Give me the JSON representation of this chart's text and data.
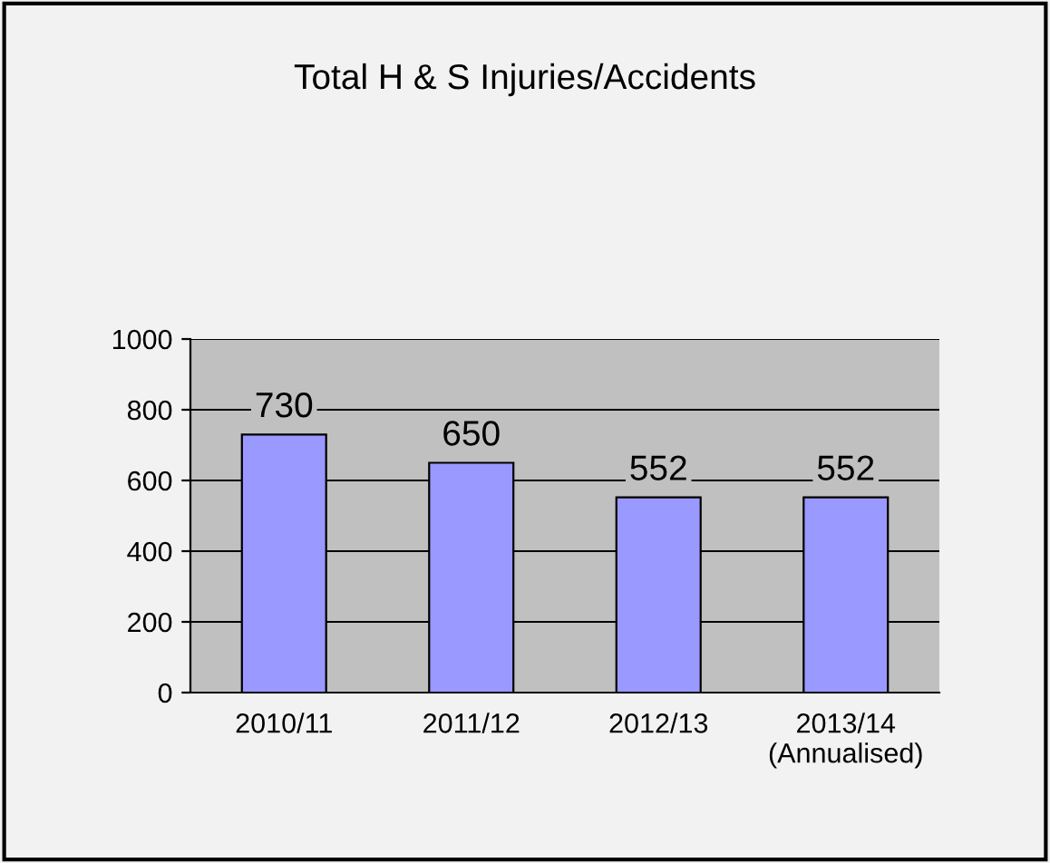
{
  "chart_data": {
    "type": "bar",
    "title": "Total H & S Injuries/Accidents",
    "categories": [
      "2010/11",
      "2011/12",
      "2012/13",
      "2013/14\n(Annualised)"
    ],
    "values": [
      730,
      650,
      552,
      552
    ],
    "color": "#9999ff",
    "ylim": [
      0,
      1000
    ],
    "yticks": [
      0,
      200,
      400,
      600,
      800,
      1000
    ],
    "grid": "y",
    "data_labels": true
  }
}
